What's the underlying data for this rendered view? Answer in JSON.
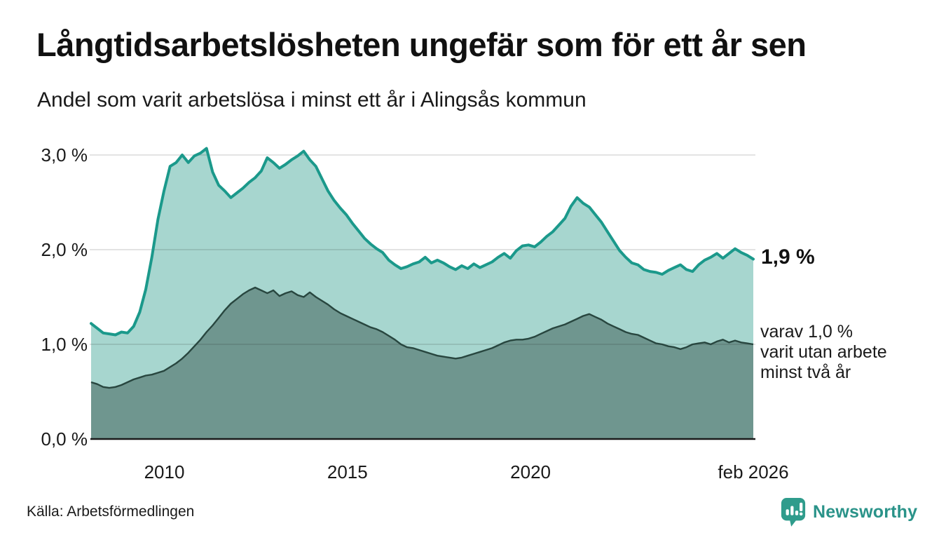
{
  "header": {
    "title": "Långtidsarbetslösheten ungefär som för ett år sen",
    "subtitle": "Andel som varit arbetslösa i minst ett år i Alingsås kommun"
  },
  "annotations": {
    "total_end_label": "1,9 %",
    "two_year_note": "varav 1,0 %\nvarit utan arbete\nminst två år"
  },
  "footer": {
    "source": "Källa: Arbetsförmedlingen",
    "brand": "Newsworthy",
    "brand_icon": "speech-bubble-bar-chart-icon"
  },
  "colors": {
    "accent_teal_line": "#1b998b",
    "area_light_fill": "#a7d6cf",
    "area_dark_fill": "#6f968f",
    "dark_line": "#28463f",
    "axis_line": "#1a1a1a",
    "gridline": "rgba(26,26,26,0.12)",
    "brand_teal": "#2f9c8c",
    "text": "#1a1a1a"
  },
  "chart_data": {
    "type": "area",
    "title": "Långtidsarbetslösheten ungefär som för ett år sen",
    "subtitle": "Andel som varit arbetslösa i minst ett år i Alingsås kommun",
    "unit": "%",
    "x_range": [
      2008.0,
      2026.083
    ],
    "ylim": [
      0,
      3.2
    ],
    "grid": "horizontal",
    "legend_position": "right-annotations",
    "y_ticks": [
      {
        "value": 0,
        "label": "0,0 %"
      },
      {
        "value": 1,
        "label": "1,0 %"
      },
      {
        "value": 2,
        "label": "2,0 %"
      },
      {
        "value": 3,
        "label": "3,0 %"
      }
    ],
    "x_ticks": [
      {
        "value": 2010,
        "label": "2010"
      },
      {
        "value": 2015,
        "label": "2015"
      },
      {
        "value": 2020,
        "label": "2020"
      },
      {
        "value": 2026.083,
        "label": "feb 2026"
      }
    ],
    "series": [
      {
        "name": "Andel arbetslösa minst ett år",
        "end_value_label": "1,9 %",
        "end_value": 1.9,
        "values": [
          1.22,
          1.17,
          1.12,
          1.11,
          1.1,
          1.13,
          1.12,
          1.19,
          1.34,
          1.58,
          1.92,
          2.32,
          2.62,
          2.88,
          2.92,
          3.0,
          2.92,
          2.99,
          3.02,
          3.07,
          2.82,
          2.68,
          2.62,
          2.55,
          2.6,
          2.65,
          2.71,
          2.76,
          2.83,
          2.97,
          2.92,
          2.86,
          2.9,
          2.95,
          2.99,
          3.04,
          2.95,
          2.88,
          2.75,
          2.62,
          2.52,
          2.44,
          2.37,
          2.28,
          2.2,
          2.12,
          2.06,
          2.01,
          1.97,
          1.89,
          1.84,
          1.8,
          1.82,
          1.85,
          1.87,
          1.92,
          1.86,
          1.89,
          1.86,
          1.82,
          1.79,
          1.83,
          1.8,
          1.85,
          1.81,
          1.84,
          1.87,
          1.92,
          1.96,
          1.91,
          1.99,
          2.04,
          2.05,
          2.03,
          2.08,
          2.14,
          2.19,
          2.26,
          2.33,
          2.46,
          2.55,
          2.49,
          2.45,
          2.37,
          2.29,
          2.19,
          2.09,
          1.99,
          1.92,
          1.86,
          1.84,
          1.79,
          1.77,
          1.76,
          1.74,
          1.78,
          1.81,
          1.84,
          1.79,
          1.77,
          1.84,
          1.89,
          1.92,
          1.96,
          1.91,
          1.96,
          2.01,
          1.97,
          1.94,
          1.9
        ]
      },
      {
        "name": "varav utan arbete minst två år",
        "end_value_label": "1,0 %",
        "end_value": 1.0,
        "values": [
          0.6,
          0.58,
          0.55,
          0.54,
          0.55,
          0.57,
          0.6,
          0.63,
          0.65,
          0.67,
          0.68,
          0.7,
          0.72,
          0.76,
          0.8,
          0.85,
          0.91,
          0.98,
          1.05,
          1.13,
          1.2,
          1.28,
          1.36,
          1.43,
          1.48,
          1.53,
          1.57,
          1.6,
          1.57,
          1.54,
          1.57,
          1.51,
          1.54,
          1.56,
          1.52,
          1.5,
          1.55,
          1.5,
          1.46,
          1.42,
          1.37,
          1.33,
          1.3,
          1.27,
          1.24,
          1.21,
          1.18,
          1.16,
          1.13,
          1.09,
          1.05,
          1.0,
          0.97,
          0.96,
          0.94,
          0.92,
          0.9,
          0.88,
          0.87,
          0.86,
          0.85,
          0.86,
          0.88,
          0.9,
          0.92,
          0.94,
          0.96,
          0.99,
          1.02,
          1.04,
          1.05,
          1.05,
          1.06,
          1.08,
          1.11,
          1.14,
          1.17,
          1.19,
          1.21,
          1.24,
          1.27,
          1.3,
          1.32,
          1.29,
          1.26,
          1.22,
          1.19,
          1.16,
          1.13,
          1.11,
          1.1,
          1.07,
          1.04,
          1.01,
          1.0,
          0.98,
          0.97,
          0.95,
          0.97,
          1.0,
          1.01,
          1.02,
          1.0,
          1.03,
          1.05,
          1.02,
          1.04,
          1.02,
          1.01,
          1.0
        ]
      }
    ]
  }
}
